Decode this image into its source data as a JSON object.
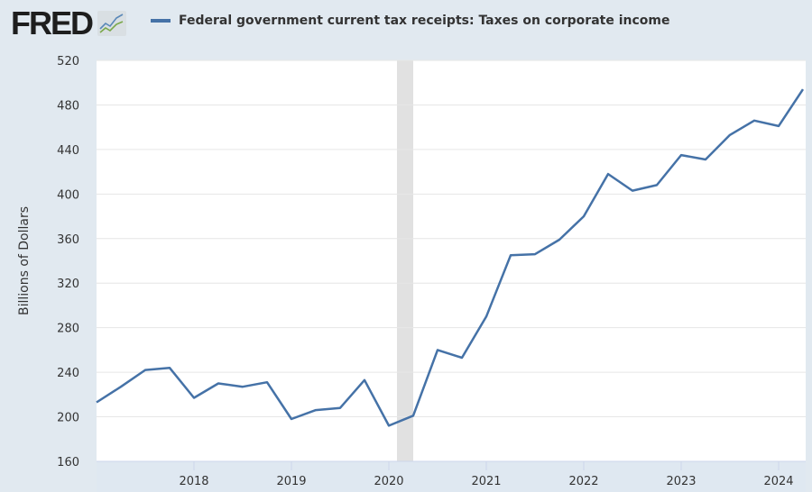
{
  "brand": {
    "name": "FRED"
  },
  "chart_data": {
    "type": "line",
    "title": "",
    "ylabel": "Billions of Dollars",
    "xlabel": "",
    "ylim": [
      160,
      520
    ],
    "yticks": [
      160,
      200,
      240,
      280,
      320,
      360,
      400,
      440,
      480,
      520
    ],
    "xticks": [
      "2018",
      "2019",
      "2020",
      "2021",
      "2022",
      "2023",
      "2024"
    ],
    "grid": true,
    "legend_placement": "top",
    "recession_shading": [
      [
        "2020-02",
        "2020-04"
      ]
    ],
    "colors": {
      "series": "#4572a7",
      "recession": "#e1e1e1",
      "background": "#e1e9f0"
    },
    "series": [
      {
        "name": "Federal government current tax receipts: Taxes on corporate income",
        "x": [
          "2017-Q1",
          "2017-Q2",
          "2017-Q3",
          "2017-Q4",
          "2018-Q1",
          "2018-Q2",
          "2018-Q3",
          "2018-Q4",
          "2019-Q1",
          "2019-Q2",
          "2019-Q3",
          "2019-Q4",
          "2020-Q1",
          "2020-Q2",
          "2020-Q3",
          "2020-Q4",
          "2021-Q1",
          "2021-Q2",
          "2021-Q3",
          "2021-Q4",
          "2022-Q1",
          "2022-Q2",
          "2022-Q3",
          "2022-Q4",
          "2023-Q1",
          "2023-Q2",
          "2023-Q3",
          "2023-Q4",
          "2024-Q1",
          "2024-Q2"
        ],
        "values": [
          213,
          227,
          242,
          244,
          217,
          230,
          227,
          231,
          198,
          206,
          208,
          233,
          192,
          201,
          260,
          253,
          290,
          345,
          346,
          359,
          380,
          418,
          403,
          408,
          435,
          431,
          453,
          466,
          461,
          494
        ]
      }
    ]
  }
}
